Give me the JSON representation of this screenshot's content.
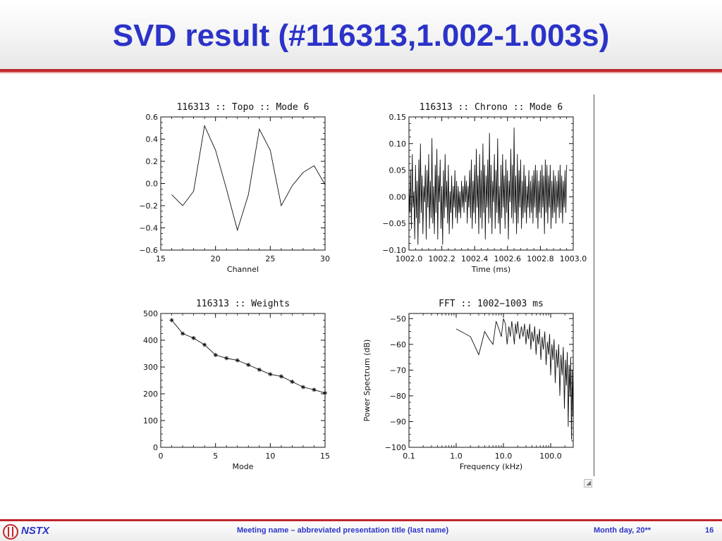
{
  "slide": {
    "title": "SVD result (#116313,1.002-1.003s)",
    "footer": {
      "logo_text": "NSTX",
      "meeting": "Meeting name  – abbreviated presentation title (last name)",
      "date": "Month day, 20**",
      "page": "16"
    }
  },
  "chart_data": [
    {
      "type": "line",
      "title": "116313 :: Topo :: Mode 6",
      "xlabel": "Channel",
      "ylabel": "",
      "xlim": [
        15,
        30
      ],
      "ylim": [
        -0.6,
        0.6
      ],
      "xticks": [
        "15",
        "20",
        "25",
        "30"
      ],
      "xtick_values": [
        15,
        20,
        25,
        30
      ],
      "yticks": [
        "0.6",
        "0.4",
        "0.2",
        "0.0",
        "−0.2",
        "−0.4",
        "−0.6"
      ],
      "ytick_values": [
        0.6,
        0.4,
        0.2,
        0.0,
        -0.2,
        -0.4,
        -0.6
      ],
      "x": [
        16,
        17,
        18,
        19,
        20,
        21,
        22,
        23,
        24,
        25,
        26,
        27,
        28,
        29,
        30
      ],
      "y": [
        -0.1,
        -0.2,
        -0.07,
        0.52,
        0.3,
        -0.05,
        -0.42,
        -0.1,
        0.49,
        0.3,
        -0.2,
        -0.02,
        0.1,
        0.16,
        -0.01
      ]
    },
    {
      "type": "line",
      "title": "116313 :: Chrono :: Mode 6",
      "xlabel": "Time (ms)",
      "ylabel": "",
      "xlim": [
        1002.0,
        1003.0
      ],
      "ylim": [
        -0.1,
        0.15
      ],
      "xticks": [
        "1002.0",
        "1002.2",
        "1002.4",
        "1002.6",
        "1002.8",
        "1003.0"
      ],
      "xtick_values": [
        1002.0,
        1002.2,
        1002.4,
        1002.6,
        1002.8,
        1003.0
      ],
      "yticks": [
        "0.15",
        "0.10",
        "0.05",
        "0.00",
        "−0.05",
        "−0.10"
      ],
      "ytick_values": [
        0.15,
        0.1,
        0.05,
        0.0,
        -0.05,
        -0.1
      ],
      "x_start": 1002.0,
      "x_step": 0.005,
      "y": [
        0.02,
        -0.03,
        0.05,
        -0.06,
        0.08,
        -0.02,
        0.01,
        -0.08,
        0.06,
        -0.04,
        0.03,
        -0.09,
        0.07,
        -0.05,
        0.1,
        -0.03,
        0.04,
        -0.07,
        0.02,
        -0.01,
        0.06,
        -0.08,
        0.05,
        -0.02,
        0.08,
        -0.06,
        0.03,
        -0.04,
        0.11,
        -0.05,
        0.02,
        -0.07,
        0.06,
        -0.03,
        0.09,
        -0.08,
        0.04,
        -0.01,
        0.07,
        -0.06,
        0.02,
        -0.09,
        0.05,
        -0.04,
        0.08,
        -0.02,
        0.03,
        -0.05,
        0.06,
        -0.07,
        0.01,
        -0.03,
        0.04,
        -0.06,
        0.02,
        -0.02,
        0.05,
        -0.04,
        0.03,
        -0.05,
        0.02,
        -0.03,
        0.01,
        -0.04,
        0.03,
        -0.02,
        0.02,
        -0.03,
        0.04,
        -0.01,
        0.03,
        -0.05,
        0.02,
        -0.02,
        0.05,
        -0.04,
        0.07,
        -0.06,
        0.03,
        -0.03,
        0.06,
        -0.05,
        0.09,
        -0.02,
        0.04,
        -0.07,
        0.08,
        -0.04,
        0.05,
        -0.06,
        0.1,
        -0.03,
        0.06,
        -0.08,
        0.04,
        -0.02,
        0.07,
        -0.05,
        0.12,
        -0.04,
        0.06,
        -0.07,
        0.03,
        -0.01,
        0.08,
        -0.06,
        0.05,
        -0.03,
        0.11,
        -0.05,
        0.02,
        -0.07,
        0.06,
        -0.04,
        0.08,
        -0.02,
        0.04,
        -0.06,
        0.07,
        -0.03,
        0.05,
        -0.08,
        0.03,
        -0.01,
        0.09,
        -0.04,
        0.06,
        -0.05,
        0.13,
        -0.03,
        0.04,
        -0.07,
        0.08,
        -0.05,
        0.05,
        -0.02,
        0.07,
        -0.06,
        0.03,
        -0.04,
        0.06,
        -0.03,
        0.04,
        -0.05,
        0.02,
        -0.02,
        0.05,
        -0.04,
        0.03,
        -0.03,
        0.04,
        -0.05,
        0.05,
        -0.02,
        0.06,
        -0.04,
        0.05,
        -0.06,
        0.03,
        -0.03,
        0.05,
        -0.04,
        0.06,
        -0.02,
        0.04,
        -0.07,
        0.07,
        -0.03,
        0.06,
        -0.05,
        0.04,
        -0.02,
        0.06,
        -0.06,
        0.03,
        -0.04,
        0.05,
        -0.03,
        0.04,
        -0.05,
        0.03,
        -0.02,
        0.05,
        -0.04,
        0.06,
        -0.03,
        0.04,
        -0.05,
        0.03,
        -0.02,
        0.05,
        -0.03,
        0.06
      ]
    },
    {
      "type": "line",
      "title": "116313 :: Weights",
      "xlabel": "Mode",
      "ylabel": "",
      "xlim": [
        0,
        15
      ],
      "ylim": [
        0,
        500
      ],
      "xticks": [
        "0",
        "5",
        "10",
        "15"
      ],
      "xtick_values": [
        0,
        5,
        10,
        15
      ],
      "yticks": [
        "500",
        "400",
        "300",
        "200",
        "100",
        "0"
      ],
      "ytick_values": [
        500,
        400,
        300,
        200,
        100,
        0
      ],
      "marker": "asterisk",
      "x": [
        1,
        2,
        3,
        4,
        5,
        6,
        7,
        8,
        9,
        10,
        11,
        12,
        13,
        14,
        15
      ],
      "y": [
        475,
        425,
        408,
        383,
        345,
        333,
        325,
        308,
        290,
        273,
        265,
        245,
        225,
        215,
        203
      ]
    },
    {
      "type": "line",
      "title": "FFT :: 1002−1003 ms",
      "xlabel": "Frequency (kHz)",
      "ylabel": "Power Spectrum (dB)",
      "xscale": "log",
      "xlim": [
        0.1,
        300
      ],
      "ylim": [
        -100,
        -48
      ],
      "xticks": [
        "0.1",
        "1.0",
        "10.0",
        "100.0"
      ],
      "xtick_values": [
        0.1,
        1.0,
        10.0,
        100.0
      ],
      "yticks": [
        "−50",
        "−60",
        "−70",
        "−80",
        "−90",
        "−100"
      ],
      "ytick_values": [
        -50,
        -60,
        -70,
        -80,
        -90,
        -100
      ],
      "x": [
        1,
        2,
        3,
        4,
        5,
        6,
        7,
        8,
        9,
        10,
        11,
        12,
        13,
        14,
        15,
        16,
        17,
        18,
        19,
        20,
        22,
        24,
        26,
        28,
        30,
        32,
        34,
        36,
        38,
        40,
        43,
        46,
        49,
        52,
        55,
        58,
        62,
        66,
        70,
        75,
        80,
        85,
        90,
        95,
        100,
        106,
        112,
        118,
        125,
        132,
        140,
        148,
        156,
        165,
        175,
        185,
        195,
        205,
        215,
        225,
        235,
        245,
        255,
        265,
        275,
        285,
        295,
        300
      ],
      "y": [
        -54,
        -57,
        -64,
        -55,
        -58,
        -60,
        -51,
        -54,
        -57,
        -50,
        -52,
        -60,
        -53,
        -57,
        -51,
        -55,
        -60,
        -52,
        -56,
        -51,
        -58,
        -53,
        -57,
        -52,
        -60,
        -54,
        -58,
        -52,
        -62,
        -55,
        -59,
        -53,
        -64,
        -56,
        -60,
        -54,
        -66,
        -57,
        -62,
        -55,
        -68,
        -59,
        -64,
        -56,
        -72,
        -60,
        -66,
        -58,
        -75,
        -62,
        -69,
        -60,
        -80,
        -64,
        -72,
        -61,
        -85,
        -66,
        -76,
        -63,
        -92,
        -68,
        -80,
        -65,
        -97,
        -70,
        -88,
        -72
      ]
    }
  ]
}
